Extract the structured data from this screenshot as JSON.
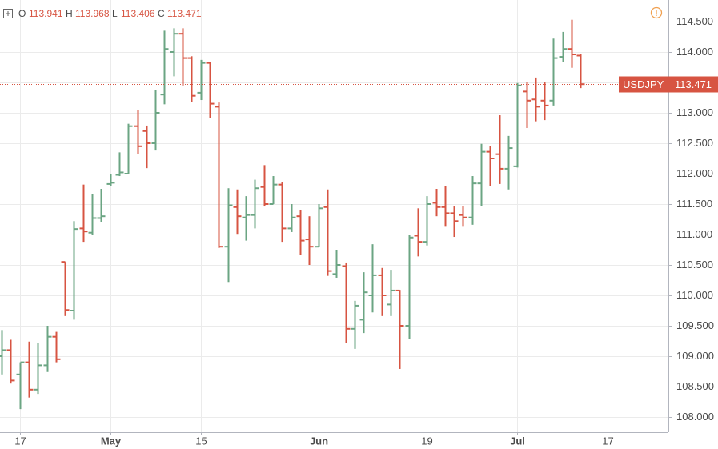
{
  "chart_data": {
    "type": "ohlc",
    "symbol": "USDJPY",
    "legend_labels": [
      "O",
      "H",
      "L",
      "C"
    ],
    "up_color": "#6ba583",
    "down_color": "#d75442",
    "grid": true,
    "open": [
      109.0,
      109.1,
      108.7,
      108.9,
      108.45,
      108.85,
      109.32,
      110.55,
      109.75,
      111.1,
      111.03,
      111.27,
      111.83,
      111.98,
      112.0,
      112.78,
      112.7,
      112.5,
      113.3,
      114.0,
      114.3,
      113.9,
      113.33,
      113.82,
      113.1,
      110.8,
      111.45,
      111.28,
      111.32,
      111.78,
      111.5,
      111.82,
      111.1,
      111.3,
      110.92,
      110.8,
      111.45,
      110.35,
      110.48,
      109.45,
      109.6,
      110.0,
      110.33,
      109.85,
      110.08,
      109.5,
      110.98,
      110.88,
      111.52,
      111.45,
      111.35,
      111.32,
      111.28,
      111.84,
      112.36,
      112.32,
      112.08,
      112.12,
      113.35,
      113.22,
      113.2,
      113.2,
      113.92,
      114.05,
      113.941
    ],
    "high": [
      109.43,
      109.27,
      108.9,
      109.24,
      109.22,
      109.5,
      109.4,
      110.55,
      111.22,
      111.82,
      111.66,
      111.75,
      112.0,
      112.35,
      112.82,
      113.05,
      112.79,
      113.38,
      114.35,
      114.39,
      114.39,
      113.93,
      113.87,
      113.84,
      113.17,
      111.76,
      111.74,
      111.63,
      111.9,
      112.14,
      111.96,
      111.86,
      111.5,
      111.4,
      111.3,
      111.5,
      111.74,
      110.75,
      110.54,
      109.91,
      110.38,
      110.84,
      110.45,
      110.42,
      110.09,
      111.0,
      111.43,
      111.63,
      111.75,
      111.8,
      111.46,
      111.46,
      111.96,
      112.49,
      112.45,
      112.96,
      112.62,
      113.49,
      113.5,
      113.58,
      113.5,
      114.22,
      114.33,
      114.53,
      113.968
    ],
    "low": [
      108.7,
      108.55,
      108.13,
      108.32,
      108.38,
      108.74,
      108.9,
      109.66,
      109.6,
      110.88,
      111.0,
      111.21,
      111.8,
      111.96,
      111.99,
      112.32,
      112.09,
      112.38,
      113.14,
      113.6,
      113.45,
      113.18,
      113.21,
      112.92,
      110.78,
      110.22,
      111.01,
      110.9,
      111.1,
      111.46,
      111.5,
      110.88,
      111.04,
      110.67,
      110.5,
      110.8,
      110.32,
      110.29,
      109.22,
      109.12,
      109.38,
      109.72,
      109.66,
      109.66,
      108.79,
      109.29,
      110.64,
      110.82,
      111.3,
      111.14,
      110.96,
      111.14,
      111.16,
      111.47,
      111.79,
      111.83,
      111.74,
      112.1,
      112.75,
      112.86,
      112.88,
      113.12,
      113.83,
      113.74,
      113.406
    ],
    "close": [
      109.1,
      108.6,
      108.9,
      108.45,
      108.85,
      109.32,
      108.95,
      109.76,
      111.09,
      111.05,
      111.27,
      111.3,
      111.85,
      112.02,
      112.78,
      112.45,
      112.5,
      113.0,
      114.05,
      114.3,
      113.9,
      113.28,
      113.82,
      113.15,
      110.8,
      111.48,
      111.3,
      111.32,
      111.76,
      111.5,
      111.82,
      111.1,
      111.28,
      110.9,
      110.8,
      111.43,
      110.4,
      110.5,
      109.45,
      109.83,
      110.05,
      110.33,
      110.0,
      110.08,
      109.5,
      110.95,
      110.88,
      111.5,
      111.45,
      111.35,
      111.22,
      111.28,
      111.84,
      112.36,
      112.25,
      112.08,
      112.42,
      113.45,
      113.2,
      113.1,
      113.12,
      113.9,
      114.05,
      113.96,
      113.471
    ],
    "ylim": [
      107.75,
      114.855
    ],
    "yticks": [
      {
        "value": 108,
        "label": "108.000"
      },
      {
        "value": 108.5,
        "label": "108.500"
      },
      {
        "value": 109,
        "label": "109.000"
      },
      {
        "value": 109.5,
        "label": "109.500"
      },
      {
        "value": 110,
        "label": "110.000"
      },
      {
        "value": 110.5,
        "label": "110.500"
      },
      {
        "value": 111,
        "label": "111.000"
      },
      {
        "value": 111.5,
        "label": "111.500"
      },
      {
        "value": 112,
        "label": "112.000"
      },
      {
        "value": 112.5,
        "label": "112.500"
      },
      {
        "value": 113,
        "label": "113.000"
      },
      {
        "value": 113.5,
        "label": "113.500"
      },
      {
        "value": 114,
        "label": "114.000"
      },
      {
        "value": 114.5,
        "label": "114.500"
      }
    ],
    "xlim": [
      -0.18,
      73.7
    ],
    "xticks": [
      {
        "value": 2,
        "label": "17"
      },
      {
        "value": 12,
        "label": "May"
      },
      {
        "value": 22,
        "label": "15"
      },
      {
        "value": 35,
        "label": "Jun"
      },
      {
        "value": 47,
        "label": "19"
      },
      {
        "value": 57,
        "label": "Jul"
      },
      {
        "value": 67,
        "label": "17"
      }
    ]
  }
}
